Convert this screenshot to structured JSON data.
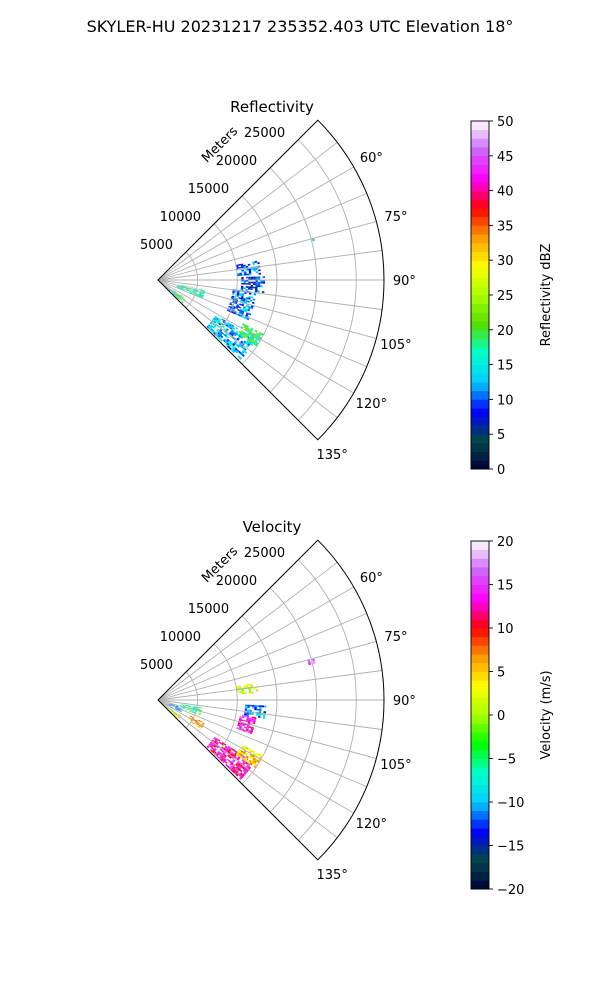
{
  "figure": {
    "title": "SKYLER-HU  20231217  235352.403 UTC Elevation 18°"
  },
  "chart_data": [
    {
      "type": "heatmap",
      "projection": "polar-sector",
      "title": "Reflectivity",
      "range_label": "Meters",
      "range_ticks": [
        5000,
        10000,
        15000,
        20000,
        25000
      ],
      "range_tick_labels": [
        "5000",
        "10000",
        "15000",
        "20000",
        "25000"
      ],
      "rmax": 28500,
      "theta_range_deg": [
        45,
        135
      ],
      "theta_ticks_deg": [
        60,
        75,
        90,
        105,
        120,
        135
      ],
      "theta_tick_labels": [
        "60°",
        "75°",
        "90°",
        "105°",
        "120°",
        "135°"
      ],
      "grid": true,
      "colorbar": {
        "label": "Reflectivity dBZ",
        "range": [
          0,
          50
        ],
        "ticks": [
          0,
          5,
          10,
          15,
          20,
          25,
          30,
          35,
          40,
          45,
          50
        ],
        "tick_labels": [
          "0",
          "5",
          "10",
          "15",
          "20",
          "25",
          "30",
          "35",
          "40",
          "45",
          "50"
        ]
      },
      "colormap": [
        "#00003a",
        "#004848",
        "#0000ff",
        "#00ccff",
        "#00ffcc",
        "#55dd00",
        "#aaff00",
        "#ffff00",
        "#ff9900",
        "#ff0000",
        "#ff00ff",
        "#cc66ff",
        "#ffffff"
      ],
      "echo_regions": [
        {
          "theta_deg": [
            125,
            137
          ],
          "range_m": [
            0,
            3500
          ],
          "value": 14
        },
        {
          "theta_deg": [
            123,
            133
          ],
          "range_m": [
            2500,
            4200
          ],
          "value": 19
        },
        {
          "theta_deg": [
            102,
            113
          ],
          "range_m": [
            2500,
            6000
          ],
          "value": 17
        },
        {
          "theta_deg": [
            121,
            134
          ],
          "range_m": [
            8500,
            14500
          ],
          "value": 13
        },
        {
          "theta_deg": [
            117,
            124
          ],
          "range_m": [
            12000,
            15000
          ],
          "value": 19
        },
        {
          "theta_deg": [
            97,
            114
          ],
          "range_m": [
            9500,
            12500
          ],
          "value": 11
        },
        {
          "theta_deg": [
            88,
            97
          ],
          "range_m": [
            10500,
            13500
          ],
          "value": 8
        },
        {
          "theta_deg": [
            79,
            87
          ],
          "range_m": [
            10000,
            12800
          ],
          "value": 10
        },
        {
          "theta_deg": [
            75,
            77
          ],
          "range_m": [
            19500,
            20300
          ],
          "value": 12
        }
      ]
    },
    {
      "type": "heatmap",
      "projection": "polar-sector",
      "title": "Velocity",
      "range_label": "Meters",
      "range_ticks": [
        5000,
        10000,
        15000,
        20000,
        25000
      ],
      "range_tick_labels": [
        "5000",
        "10000",
        "15000",
        "20000",
        "25000"
      ],
      "rmax": 28500,
      "theta_range_deg": [
        45,
        135
      ],
      "theta_ticks_deg": [
        60,
        75,
        90,
        105,
        120,
        135
      ],
      "theta_tick_labels": [
        "60°",
        "75°",
        "90°",
        "105°",
        "120°",
        "135°"
      ],
      "grid": true,
      "colorbar": {
        "label": "Velocity (m/s)",
        "range": [
          -20,
          20
        ],
        "ticks": [
          -20,
          -15,
          -10,
          -5,
          0,
          5,
          10,
          15,
          20
        ],
        "tick_labels": [
          "−20",
          "−15",
          "−10",
          "−5",
          "0",
          "5",
          "10",
          "15",
          "20"
        ]
      },
      "colormap": [
        "#00003a",
        "#004848",
        "#0000ff",
        "#00ccff",
        "#00ffcc",
        "#00ff00",
        "#aaff00",
        "#ffff00",
        "#ff9900",
        "#ff0000",
        "#ff00ff",
        "#cc66ff",
        "#ffffff"
      ],
      "echo_regions": [
        {
          "theta_deg": [
            125,
            137
          ],
          "range_m": [
            0,
            3500
          ],
          "value": 2
        },
        {
          "theta_deg": [
            107,
            118
          ],
          "range_m": [
            1200,
            3200
          ],
          "value": -10
        },
        {
          "theta_deg": [
            100,
            110
          ],
          "range_m": [
            3000,
            5500
          ],
          "value": -6
        },
        {
          "theta_deg": [
            116,
            124
          ],
          "range_m": [
            4500,
            6500
          ],
          "value": 6
        },
        {
          "theta_deg": [
            123,
            134
          ],
          "range_m": [
            8500,
            14500
          ],
          "value": 13
        },
        {
          "theta_deg": [
            118,
            125
          ],
          "range_m": [
            12000,
            15000
          ],
          "value": 4
        },
        {
          "theta_deg": [
            100,
            110
          ],
          "range_m": [
            10500,
            12500
          ],
          "value": 14
        },
        {
          "theta_deg": [
            93,
            100
          ],
          "range_m": [
            11000,
            13500
          ],
          "value": -11
        },
        {
          "theta_deg": [
            80,
            86
          ],
          "range_m": [
            10000,
            12500
          ],
          "value": 2
        },
        {
          "theta_deg": [
            75,
            77
          ],
          "range_m": [
            19500,
            20300
          ],
          "value": 16
        }
      ]
    }
  ]
}
